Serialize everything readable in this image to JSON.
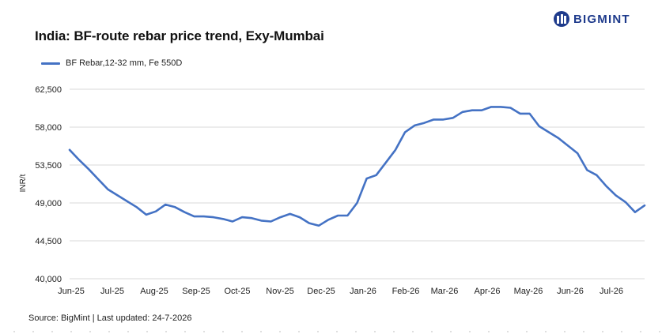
{
  "header": {
    "title": "India: BF-route rebar price trend, Exy-Mumbai",
    "brand": "BIGMINT",
    "brand_color": "#1f3b8c"
  },
  "footer": {
    "source": "Source: BigMint | Last updated: 24-7-2026"
  },
  "chart_data": {
    "type": "line",
    "title": "India: BF-route rebar price trend, Exy-Mumbai",
    "xlabel": "",
    "ylabel": "INR/t",
    "ylim": [
      40000,
      62500
    ],
    "yticks": [
      40000,
      44500,
      49000,
      53500,
      58000,
      62500
    ],
    "ytick_labels": [
      "40,000",
      "44,500",
      "49,000",
      "53,500",
      "58,000",
      "62,500"
    ],
    "xtick_labels": [
      "Jun-25",
      "Jul-25",
      "Aug-25",
      "Sep-25",
      "Oct-25",
      "Nov-25",
      "Dec-25",
      "Jan-26",
      "Feb-26",
      "Mar-26",
      "Apr-26",
      "May-26",
      "Jun-26",
      "Jul-26"
    ],
    "grid": true,
    "legend": "top-left",
    "series": [
      {
        "name": "BF Rebar,12-32 mm, Fe 550D",
        "color": "#4472c4",
        "values": [
          55300,
          54100,
          53000,
          51800,
          50600,
          49900,
          49200,
          48500,
          47600,
          48000,
          48800,
          48500,
          47900,
          47400,
          47400,
          47300,
          47100,
          46800,
          47300,
          47200,
          46900,
          46800,
          47300,
          47700,
          47300,
          46600,
          46300,
          47000,
          47500,
          47500,
          49000,
          51900,
          52300,
          53800,
          55300,
          57400,
          58200,
          58500,
          58900,
          58900,
          59100,
          59800,
          60000,
          60000,
          60400,
          60400,
          60300,
          59600,
          59600,
          58100,
          57400,
          56700,
          55800,
          54900,
          52900,
          52300,
          51000,
          49900,
          49100,
          47900,
          48700
        ]
      }
    ]
  }
}
